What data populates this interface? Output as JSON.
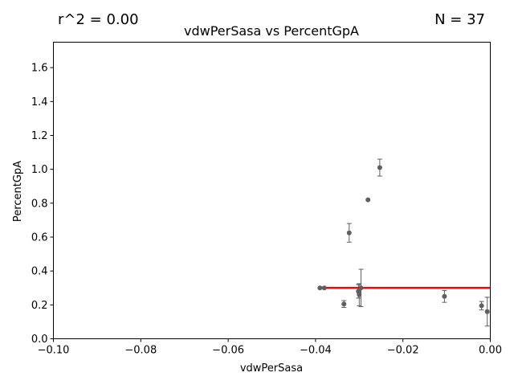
{
  "chart_data": {
    "type": "scatter",
    "title": "vdwPerSasa vs PercentGpA",
    "xlabel": "vdwPerSasa",
    "ylabel": "PercentGpA",
    "xlim": [
      -0.1,
      0.0
    ],
    "ylim": [
      0.0,
      1.75
    ],
    "xticks": [
      "−0.10",
      "−0.08",
      "−0.06",
      "−0.04",
      "−0.02",
      "0.00"
    ],
    "xtick_values": [
      -0.1,
      -0.08,
      -0.06,
      -0.04,
      -0.02,
      0.0
    ],
    "yticks": [
      "0.0",
      "0.2",
      "0.4",
      "0.6",
      "0.8",
      "1.0",
      "1.2",
      "1.4",
      "1.6"
    ],
    "ytick_values": [
      0.0,
      0.2,
      0.4,
      0.6,
      0.8,
      1.0,
      1.2,
      1.4,
      1.6
    ],
    "grid": false,
    "annotations": {
      "r2": "r^2 = 0.00",
      "n": "N = 37"
    },
    "marker_color": "#5f5f5f",
    "fit_color": "#ff0000",
    "points": [
      {
        "x": -0.039,
        "y": 0.3,
        "err": 0.0
      },
      {
        "x": -0.038,
        "y": 0.3,
        "err": 0.0
      },
      {
        "x": -0.0335,
        "y": 0.205,
        "err": 0.02
      },
      {
        "x": -0.0323,
        "y": 0.625,
        "err": 0.055
      },
      {
        "x": -0.0302,
        "y": 0.28,
        "err": 0.04
      },
      {
        "x": -0.03,
        "y": 0.26,
        "err": 0.065
      },
      {
        "x": -0.0296,
        "y": 0.3,
        "err": 0.11
      },
      {
        "x": -0.028,
        "y": 0.82,
        "err": 0.0
      },
      {
        "x": -0.0253,
        "y": 1.01,
        "err": 0.05
      },
      {
        "x": -0.0105,
        "y": 0.25,
        "err": 0.035
      },
      {
        "x": -0.002,
        "y": 0.195,
        "err": 0.025
      },
      {
        "x": -0.0007,
        "y": 0.16,
        "err": 0.085
      }
    ],
    "fit_line": {
      "x": [
        -0.039,
        0.0
      ],
      "y": [
        0.3,
        0.3
      ]
    }
  }
}
